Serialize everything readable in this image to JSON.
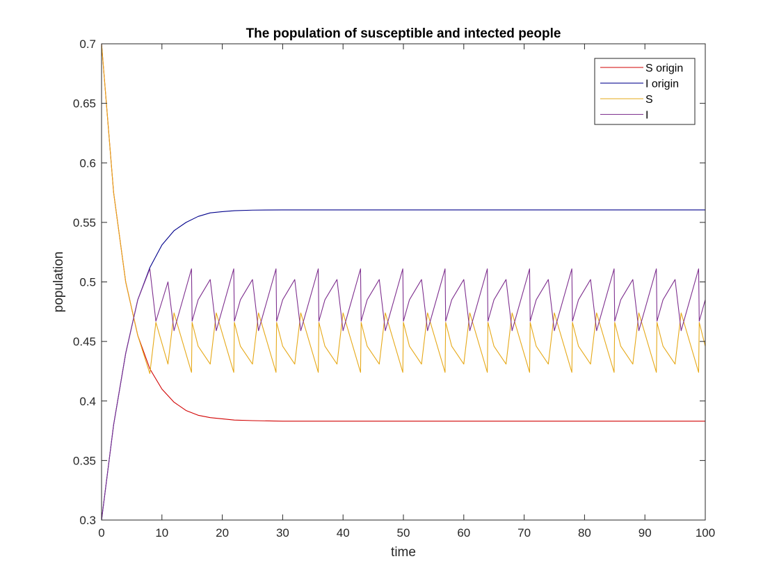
{
  "chart_data": {
    "type": "line",
    "title": "The population of susceptible and intected people",
    "xlabel": "time",
    "ylabel": "population",
    "xlim": [
      0,
      100
    ],
    "ylim": [
      0.3,
      0.7
    ],
    "xticks": [
      0,
      10,
      20,
      30,
      40,
      50,
      60,
      70,
      80,
      90,
      100
    ],
    "yticks": [
      0.3,
      0.35,
      0.4,
      0.45,
      0.5,
      0.55,
      0.6,
      0.65,
      0.7
    ],
    "xtick_labels": [
      "0",
      "10",
      "20",
      "30",
      "40",
      "50",
      "60",
      "70",
      "80",
      "90",
      "100"
    ],
    "ytick_labels": [
      "0.3",
      "0.35",
      "0.4",
      "0.45",
      "0.5",
      "0.55",
      "0.6",
      "0.65",
      "0.7"
    ],
    "grid": false,
    "legend_position": "top-right",
    "series": [
      {
        "name": "S origin",
        "color": "#d10000",
        "x": [
          0,
          2,
          4,
          6,
          8,
          10,
          12,
          14,
          16,
          18,
          20,
          22,
          25,
          30,
          40,
          60,
          80,
          100
        ],
        "y": [
          0.7,
          0.575,
          0.5,
          0.455,
          0.427,
          0.41,
          0.399,
          0.392,
          0.388,
          0.386,
          0.385,
          0.384,
          0.3835,
          0.383,
          0.383,
          0.383,
          0.383,
          0.383
        ]
      },
      {
        "name": "I origin",
        "color": "#00008b",
        "x": [
          0,
          2,
          4,
          6,
          8,
          10,
          12,
          14,
          16,
          18,
          20,
          22,
          25,
          30,
          40,
          60,
          80,
          100
        ],
        "y": [
          0.3,
          0.38,
          0.44,
          0.485,
          0.512,
          0.531,
          0.543,
          0.55,
          0.555,
          0.558,
          0.559,
          0.5598,
          0.5603,
          0.5605,
          0.5605,
          0.5605,
          0.5605,
          0.5605
        ]
      },
      {
        "name": "S",
        "color": "#e6a817",
        "x": [
          0,
          2,
          4,
          6,
          8,
          9,
          11,
          12,
          14.9,
          15,
          16,
          18,
          19,
          21.9,
          22,
          23,
          25,
          26,
          28.9,
          29,
          30,
          32,
          33,
          35.9,
          36,
          37,
          39,
          40,
          42.9,
          43,
          44,
          46,
          47,
          49.9,
          50,
          51,
          53,
          54,
          56.9,
          57,
          58,
          60,
          61,
          63.9,
          64,
          65,
          67,
          68,
          70.9,
          71,
          72,
          74,
          75,
          77.9,
          78,
          79,
          81,
          82,
          84.9,
          85,
          86,
          88,
          89,
          91.9,
          92,
          93,
          95,
          96,
          98.9,
          99,
          100
        ],
        "y": [
          0.7,
          0.575,
          0.5,
          0.455,
          0.423,
          0.466,
          0.431,
          0.474,
          0.424,
          0.466,
          0.446,
          0.431,
          0.474,
          0.424,
          0.466,
          0.446,
          0.431,
          0.474,
          0.424,
          0.466,
          0.446,
          0.431,
          0.474,
          0.424,
          0.466,
          0.446,
          0.431,
          0.474,
          0.424,
          0.466,
          0.446,
          0.431,
          0.474,
          0.424,
          0.466,
          0.446,
          0.431,
          0.474,
          0.424,
          0.466,
          0.446,
          0.431,
          0.474,
          0.424,
          0.466,
          0.446,
          0.431,
          0.474,
          0.424,
          0.466,
          0.446,
          0.431,
          0.474,
          0.424,
          0.466,
          0.446,
          0.431,
          0.474,
          0.424,
          0.466,
          0.446,
          0.431,
          0.474,
          0.424,
          0.466,
          0.446,
          0.431,
          0.474,
          0.424,
          0.466,
          0.446
        ]
      },
      {
        "name": "I",
        "color": "#7e2f8e",
        "x": [
          0,
          2,
          4,
          6,
          8,
          9,
          11,
          12,
          14.9,
          15,
          16,
          18,
          19,
          21.9,
          22,
          23,
          25,
          26,
          28.9,
          29,
          30,
          32,
          33,
          35.9,
          36,
          37,
          39,
          40,
          42.9,
          43,
          44,
          46,
          47,
          49.9,
          50,
          51,
          53,
          54,
          56.9,
          57,
          58,
          60,
          61,
          63.9,
          64,
          65,
          67,
          68,
          70.9,
          71,
          72,
          74,
          75,
          77.9,
          78,
          79,
          81,
          82,
          84.9,
          85,
          86,
          88,
          89,
          91.9,
          92,
          93,
          95,
          96,
          98.9,
          99,
          100
        ],
        "y": [
          0.3,
          0.38,
          0.44,
          0.485,
          0.511,
          0.467,
          0.5,
          0.459,
          0.511,
          0.467,
          0.485,
          0.502,
          0.459,
          0.511,
          0.467,
          0.485,
          0.502,
          0.459,
          0.511,
          0.467,
          0.485,
          0.502,
          0.459,
          0.511,
          0.467,
          0.485,
          0.502,
          0.459,
          0.511,
          0.467,
          0.485,
          0.502,
          0.459,
          0.511,
          0.467,
          0.485,
          0.502,
          0.459,
          0.511,
          0.467,
          0.485,
          0.502,
          0.459,
          0.511,
          0.467,
          0.485,
          0.502,
          0.459,
          0.511,
          0.467,
          0.485,
          0.502,
          0.459,
          0.511,
          0.467,
          0.485,
          0.502,
          0.459,
          0.511,
          0.467,
          0.485,
          0.502,
          0.459,
          0.511,
          0.467,
          0.485,
          0.502,
          0.459,
          0.511,
          0.467,
          0.485
        ]
      }
    ]
  }
}
